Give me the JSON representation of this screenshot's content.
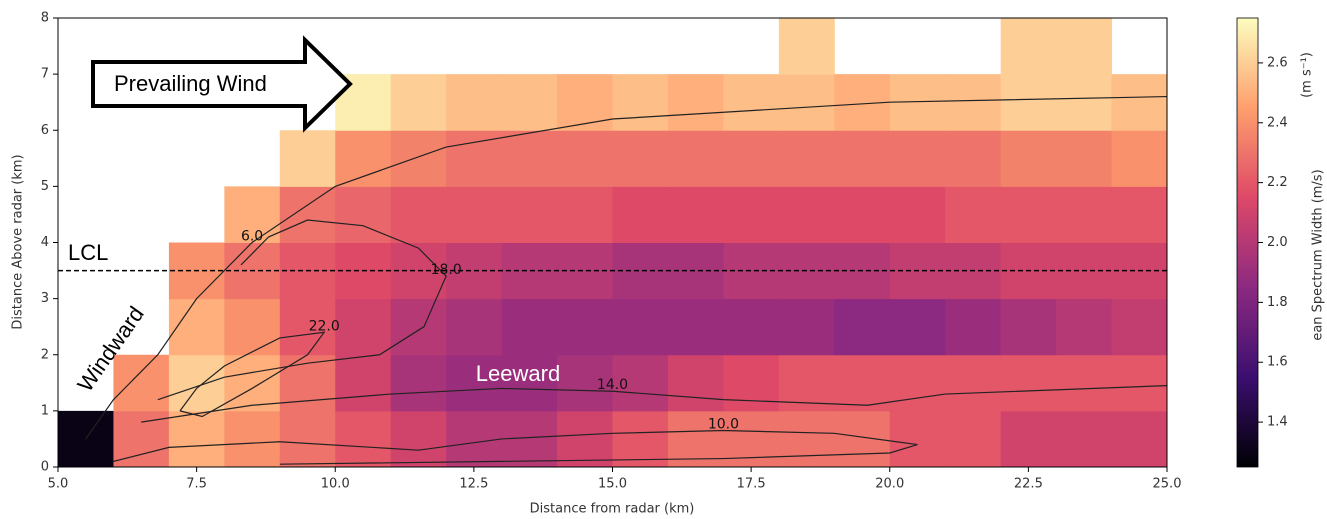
{
  "chart_data": {
    "type": "heatmap",
    "xlabel": "Distance from radar (km)",
    "ylabel": "Distance Above radar  (km)",
    "colorbar_label": "ean Spectrum Width (m/s)",
    "colorbar_unit": "(m s⁻¹)",
    "xlim": [
      5,
      25
    ],
    "ylim": [
      0,
      8
    ],
    "xticks": [
      {
        "value": 5,
        "label": "5.0"
      },
      7.5,
      {
        "value": 10,
        "label": "10.0"
      },
      12.5,
      {
        "value": 15,
        "label": "15.0"
      },
      17.5,
      {
        "value": 20,
        "label": "20.0"
      },
      22.5,
      {
        "value": 25,
        "label": "25.0"
      }
    ],
    "yticks": [
      0,
      1,
      2,
      3,
      4,
      5,
      6,
      7,
      8
    ],
    "x_edges": [
      5,
      6,
      7,
      8,
      9,
      10,
      11,
      12,
      13,
      14,
      15,
      16,
      17,
      18,
      19,
      20,
      21,
      22,
      23,
      24,
      25
    ],
    "y_edges": [
      0,
      1,
      2,
      3,
      4,
      5,
      6,
      7,
      8
    ],
    "values": [
      [
        1.3,
        2.3,
        2.5,
        2.4,
        2.3,
        2.2,
        2.1,
        2.0,
        2.0,
        2.1,
        2.2,
        2.3,
        2.3,
        2.3,
        2.3,
        2.2,
        2.2,
        2.1,
        2.1,
        2.1
      ],
      [
        null,
        2.4,
        2.6,
        2.5,
        2.3,
        2.1,
        1.95,
        1.9,
        1.9,
        1.95,
        2.0,
        2.1,
        2.15,
        2.2,
        2.2,
        2.2,
        2.2,
        2.2,
        2.2,
        2.2
      ],
      [
        null,
        null,
        2.5,
        2.4,
        2.2,
        2.1,
        2.0,
        1.95,
        1.9,
        1.9,
        1.9,
        1.9,
        1.9,
        1.9,
        1.85,
        1.85,
        1.9,
        1.95,
        2.0,
        2.05
      ],
      [
        null,
        null,
        2.4,
        2.3,
        2.2,
        2.15,
        2.1,
        2.05,
        2.0,
        2.0,
        1.95,
        1.95,
        2.0,
        2.0,
        2.0,
        2.05,
        2.05,
        2.1,
        2.1,
        2.1
      ],
      [
        null,
        null,
        null,
        2.5,
        2.3,
        2.25,
        2.2,
        2.2,
        2.2,
        2.2,
        2.15,
        2.15,
        2.15,
        2.15,
        2.15,
        2.15,
        2.2,
        2.2,
        2.2,
        2.2
      ],
      [
        null,
        null,
        null,
        null,
        2.6,
        2.4,
        2.35,
        2.3,
        2.3,
        2.3,
        2.3,
        2.3,
        2.3,
        2.3,
        2.3,
        2.3,
        2.3,
        2.35,
        2.35,
        2.4
      ],
      [
        null,
        null,
        null,
        null,
        null,
        2.7,
        2.6,
        2.55,
        2.55,
        2.5,
        2.55,
        2.5,
        2.55,
        2.55,
        2.5,
        2.55,
        2.55,
        2.6,
        2.6,
        2.55
      ],
      [
        null,
        null,
        null,
        null,
        null,
        null,
        null,
        null,
        null,
        null,
        null,
        null,
        null,
        2.6,
        null,
        null,
        null,
        2.6,
        2.6,
        null
      ]
    ],
    "colormap": [
      "#000004",
      "#3b0f70",
      "#8c2981",
      "#de4968",
      "#fe9f6d",
      "#fcfdbf"
    ],
    "clim": [
      1.25,
      2.75
    ],
    "cticks": [
      1.4,
      1.6,
      1.8,
      {
        "value": 2,
        "label": "2.0"
      },
      2.2,
      2.4,
      2.6
    ],
    "contours": [
      {
        "level": {
          "value": 6,
          "label": "6.0"
        },
        "x": [
          5.5,
          6.0,
          6.4,
          6.8,
          7.5,
          8.5,
          10,
          12,
          15,
          20,
          25
        ],
        "y": [
          0.5,
          1.2,
          1.6,
          2.0,
          3.0,
          4.0,
          5.0,
          5.7,
          6.2,
          6.5,
          6.6
        ]
      },
      {
        "level": {
          "value": 10,
          "label": "10.0"
        },
        "x": [
          6.0,
          7,
          9,
          11.5,
          13,
          15,
          17,
          19,
          20.5,
          20,
          17,
          13,
          9
        ],
        "y": [
          0.1,
          0.35,
          0.45,
          0.3,
          0.5,
          0.6,
          0.65,
          0.6,
          0.4,
          0.25,
          0.15,
          0.1,
          0.05
        ]
      },
      {
        "level": {
          "value": 14,
          "label": "14.0"
        },
        "x": [
          6.5,
          8.5,
          11,
          13,
          15,
          17,
          19.6,
          21,
          25
        ],
        "y": [
          0.8,
          1.1,
          1.3,
          1.4,
          1.35,
          1.2,
          1.1,
          1.3,
          1.45
        ]
      },
      {
        "level": {
          "value": 18,
          "label": "18.0"
        },
        "x": [
          6.8,
          8,
          9.5,
          10.8,
          11.6,
          12,
          11.5,
          10.5,
          9.5,
          8.8,
          8.3
        ],
        "y": [
          1.2,
          1.6,
          1.85,
          2.0,
          2.5,
          3.4,
          3.9,
          4.3,
          4.4,
          4.1,
          3.6
        ]
      },
      {
        "level": {
          "value": 22,
          "label": "22.0"
        },
        "x": [
          7.2,
          7.5,
          8.0,
          9.0,
          9.8,
          9.5,
          8.5,
          7.6,
          7.2
        ],
        "y": [
          1.0,
          1.4,
          1.8,
          2.3,
          2.4,
          2.0,
          1.4,
          0.9,
          1.0
        ]
      }
    ],
    "lcl_height": 3.5,
    "lcl_label": "LCL",
    "annotations": {
      "wind": "Prevailing Wind",
      "windward": "Windward",
      "leeward": "Leeward"
    }
  }
}
